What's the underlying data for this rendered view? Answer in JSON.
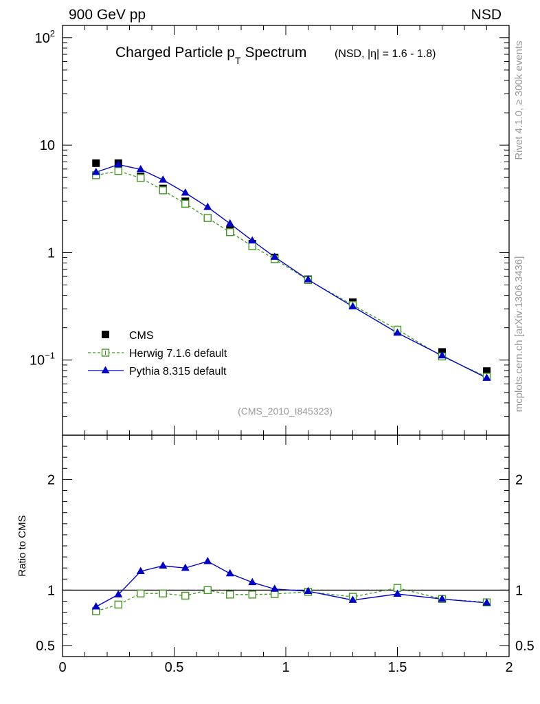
{
  "header": {
    "left": "900 GeV pp",
    "right": "NSD"
  },
  "chart_data": {
    "type": "scatter",
    "title": "Charged Particle p",
    "title_subscript": "T",
    "title_suffix": "Spectrum",
    "title_selection": "(NSD, |η| = 1.6 - 1.8)",
    "xlabel": "",
    "ylabel": "",
    "xlim": [
      0,
      2
    ],
    "ylim": [
      0.02,
      130
    ],
    "yscale": "log",
    "x_ticks": [
      "0",
      "0.5",
      "1",
      "1.5",
      "2"
    ],
    "y_ticks": [
      {
        "value": 0.1,
        "base": "10",
        "exp": "−1"
      },
      {
        "value": 1,
        "base": "1",
        "exp": ""
      },
      {
        "value": 10,
        "base": "10",
        "exp": ""
      },
      {
        "value": 100,
        "base": "10",
        "exp": "2"
      }
    ],
    "x": [
      0.15,
      0.25,
      0.35,
      0.45,
      0.55,
      0.65,
      0.75,
      0.85,
      0.95,
      1.1,
      1.3,
      1.5,
      1.7,
      1.9
    ],
    "series": [
      {
        "name": "CMS",
        "style": "points",
        "color": "#000000",
        "values": [
          6.8,
          6.8,
          5.1,
          3.95,
          3.0,
          2.1,
          1.62,
          1.21,
          0.9,
          0.565,
          0.345,
          0.185,
          0.119,
          0.079
        ]
      },
      {
        "name": "Herwig 7.1.6 default",
        "style": "dashed-open-square",
        "color": "#3d9a1e",
        "values": [
          5.25,
          5.75,
          4.95,
          3.8,
          2.85,
          2.1,
          1.55,
          1.15,
          0.87,
          0.555,
          0.325,
          0.192,
          0.108,
          0.07
        ]
      },
      {
        "name": "Pythia 8.315 default",
        "style": "solid-triangle",
        "color": "#0000cc",
        "values": [
          5.6,
          6.6,
          5.95,
          4.75,
          3.6,
          2.65,
          1.86,
          1.29,
          0.91,
          0.56,
          0.315,
          0.179,
          0.11,
          0.068
        ]
      }
    ],
    "ratio": {
      "ylabel": "Ratio to CMS",
      "ylim": [
        0.4,
        2.4
      ],
      "y_ticks": [
        "0.5",
        "1",
        "2"
      ],
      "reference": 1,
      "herwig": [
        0.81,
        0.87,
        0.97,
        0.97,
        0.95,
        1.0,
        0.96,
        0.96,
        0.965,
        0.985,
        0.94,
        1.02,
        0.92,
        0.89
      ],
      "pythia": [
        0.85,
        0.96,
        1.17,
        1.22,
        1.2,
        1.26,
        1.15,
        1.07,
        1.01,
        0.99,
        0.91,
        0.965,
        0.92,
        0.885
      ]
    },
    "legend_position": "bottom-left",
    "analysis_id": "(CMS_2010_I845323)"
  },
  "side_labels": {
    "rivet": "Rivet 4.1.0, ≥ 300k events",
    "mcplots": "mcplots.cern.ch [arXiv:1306.3436]"
  }
}
